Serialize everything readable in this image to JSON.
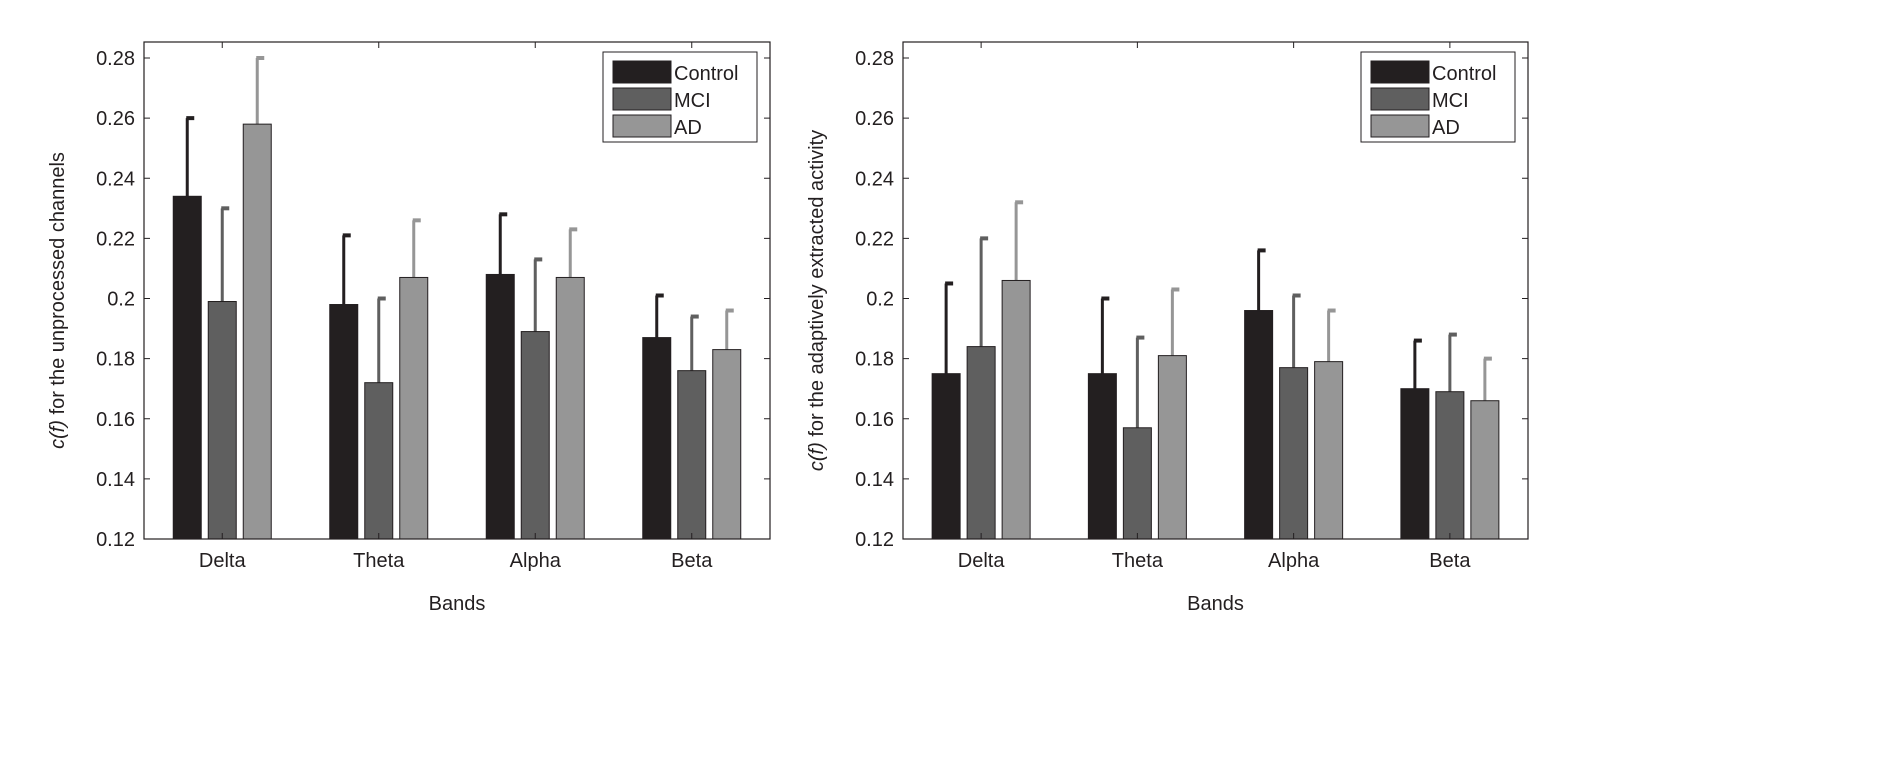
{
  "chart_data": [
    {
      "type": "bar",
      "categories": [
        "Delta",
        "Theta",
        "Alpha",
        "Beta"
      ],
      "xlabel": "Bands",
      "ylabel_italic": "c(f)",
      "ylabel": " for the unprocessed channels",
      "ylim": [
        0.12,
        0.28
      ],
      "yticks": [
        "0.12",
        "0.14",
        "0.16",
        "0.18",
        "0.2",
        "0.22",
        "0.24",
        "0.26",
        "0.28"
      ],
      "legend_position": "top-right",
      "series": [
        {
          "name": "Control",
          "color": "#231f20",
          "values": [
            0.234,
            0.198,
            0.208,
            0.187
          ],
          "error_upper": [
            0.26,
            0.221,
            0.228,
            0.201
          ]
        },
        {
          "name": "MCI",
          "color": "#5f5f5f",
          "values": [
            0.199,
            0.172,
            0.189,
            0.176
          ],
          "error_upper": [
            0.23,
            0.2,
            0.213,
            0.194
          ]
        },
        {
          "name": "AD",
          "color": "#969696",
          "values": [
            0.258,
            0.207,
            0.207,
            0.183
          ],
          "error_upper": [
            0.28,
            0.226,
            0.223,
            0.196
          ]
        }
      ]
    },
    {
      "type": "bar",
      "categories": [
        "Delta",
        "Theta",
        "Alpha",
        "Beta"
      ],
      "xlabel": "Bands",
      "ylabel_italic": "c(f)",
      "ylabel": " for the adaptively extracted activity",
      "ylim": [
        0.12,
        0.28
      ],
      "yticks": [
        "0.12",
        "0.14",
        "0.16",
        "0.18",
        "0.2",
        "0.22",
        "0.24",
        "0.26",
        "0.28"
      ],
      "legend_position": "top-right",
      "series": [
        {
          "name": "Control",
          "color": "#231f20",
          "values": [
            0.175,
            0.175,
            0.196,
            0.17
          ],
          "error_upper": [
            0.205,
            0.2,
            0.216,
            0.186
          ]
        },
        {
          "name": "MCI",
          "color": "#5f5f5f",
          "values": [
            0.184,
            0.157,
            0.177,
            0.169
          ],
          "error_upper": [
            0.22,
            0.187,
            0.201,
            0.188
          ]
        },
        {
          "name": "AD",
          "color": "#969696",
          "values": [
            0.206,
            0.181,
            0.179,
            0.166
          ],
          "error_upper": [
            0.232,
            0.203,
            0.196,
            0.18
          ]
        }
      ]
    }
  ]
}
